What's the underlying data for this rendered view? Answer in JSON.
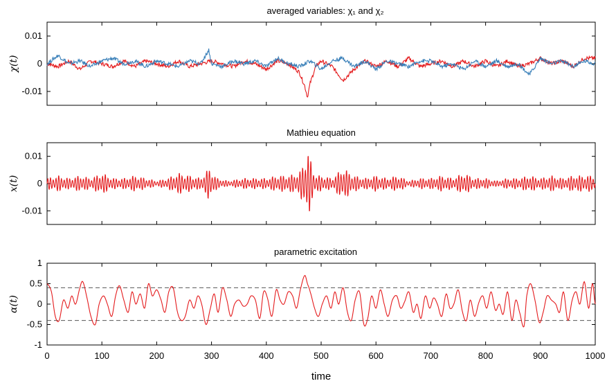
{
  "colors": {
    "red": "#e41a1c",
    "blue": "#377eb8",
    "dashed": "#555555"
  },
  "chart_data": [
    {
      "type": "line",
      "title": "averaged variables: χ₁ and χ₂",
      "ylabel": "χ(t)",
      "xlim": [
        0,
        1000
      ],
      "ylim": [
        -0.015,
        0.015
      ],
      "yticks": [
        -0.01,
        0,
        0.01
      ],
      "yticklabels": [
        "-0.01",
        "0",
        "0.01"
      ],
      "series": [
        {
          "name": "χ₁",
          "color": "#e41a1c",
          "x": [
            0,
            20,
            40,
            60,
            80,
            100,
            120,
            140,
            160,
            180,
            200,
            220,
            240,
            260,
            280,
            300,
            320,
            340,
            360,
            380,
            400,
            420,
            440,
            460,
            470,
            475,
            480,
            490,
            500,
            520,
            540,
            560,
            580,
            600,
            620,
            640,
            660,
            680,
            700,
            720,
            740,
            760,
            780,
            800,
            820,
            840,
            860,
            880,
            900,
            920,
            940,
            960,
            980,
            1000
          ],
          "y": [
            0,
            -0.001,
            0.001,
            -0.002,
            0.001,
            0,
            -0.001,
            0.001,
            -0.001,
            0.001,
            0,
            -0.001,
            0.001,
            -0.001,
            0,
            0.001,
            0,
            -0.001,
            0.001,
            0,
            -0.002,
            0.001,
            0,
            -0.003,
            -0.008,
            -0.012,
            -0.007,
            -0.001,
            0.001,
            -0.001,
            -0.006,
            -0.002,
            0.001,
            -0.001,
            0.001,
            -0.001,
            0.002,
            -0.001,
            0,
            0.001,
            -0.001,
            0.001,
            -0.001,
            0.001,
            -0.001,
            0.001,
            -0.001,
            0,
            0.002,
            0,
            0.001,
            -0.001,
            0.002,
            0.002
          ]
        },
        {
          "name": "χ₂",
          "color": "#377eb8",
          "x": [
            0,
            20,
            40,
            60,
            80,
            100,
            120,
            140,
            160,
            180,
            200,
            220,
            240,
            260,
            280,
            295,
            300,
            320,
            340,
            360,
            380,
            400,
            420,
            440,
            460,
            480,
            500,
            520,
            540,
            560,
            580,
            600,
            620,
            640,
            660,
            680,
            700,
            720,
            740,
            760,
            780,
            800,
            820,
            840,
            860,
            880,
            900,
            920,
            940,
            960,
            980,
            1000
          ],
          "y": [
            0,
            0.003,
            0,
            0.001,
            -0.001,
            0.001,
            0.002,
            0,
            0.001,
            -0.001,
            0.001,
            0,
            -0.001,
            0.001,
            0,
            0.005,
            0,
            -0.001,
            0.001,
            0,
            0.001,
            -0.001,
            0.002,
            0,
            -0.001,
            0.001,
            -0.002,
            0.001,
            0.002,
            -0.001,
            0.001,
            -0.002,
            0.001,
            0,
            -0.001,
            0.001,
            0.001,
            -0.001,
            0,
            -0.002,
            0.001,
            -0.001,
            0.001,
            -0.001,
            0,
            -0.004,
            0.002,
            0,
            0.001,
            -0.001,
            0.001,
            0
          ]
        }
      ]
    },
    {
      "type": "line",
      "title": "Mathieu equation",
      "ylabel": "x(t)",
      "xlim": [
        0,
        1000
      ],
      "ylim": [
        -0.015,
        0.015
      ],
      "yticks": [
        -0.01,
        0,
        0.01
      ],
      "yticklabels": [
        "-0.01",
        "0",
        "0.01"
      ],
      "series": [
        {
          "color": "#e41a1c",
          "envelope_t": [
            0,
            20,
            40,
            60,
            80,
            100,
            120,
            140,
            160,
            180,
            200,
            220,
            240,
            260,
            280,
            295,
            310,
            330,
            360,
            400,
            420,
            440,
            460,
            470,
            476,
            482,
            490,
            500,
            520,
            540,
            560,
            580,
            600,
            620,
            640,
            660,
            680,
            700,
            720,
            740,
            760,
            780,
            800,
            820,
            840,
            860,
            880,
            900,
            920,
            940,
            960,
            980,
            1000
          ],
          "envelope": [
            0.002,
            0.003,
            0.002,
            0.003,
            0.002,
            0.004,
            0.002,
            0.002,
            0.003,
            0.002,
            0.001,
            0.002,
            0.004,
            0.003,
            0.002,
            0.006,
            0.002,
            0.001,
            0.002,
            0.002,
            0.003,
            0.003,
            0.004,
            0.009,
            0.013,
            0.008,
            0.003,
            0.003,
            0.002,
            0.006,
            0.003,
            0.002,
            0.003,
            0.002,
            0.003,
            0.001,
            0.002,
            0.002,
            0.003,
            0.002,
            0.004,
            0.002,
            0.002,
            0.001,
            0.002,
            0.002,
            0.003,
            0.002,
            0.003,
            0.002,
            0.003,
            0.003,
            0.003
          ],
          "period": 5
        }
      ]
    },
    {
      "type": "line",
      "title": "parametric excitation",
      "ylabel": "α(t)",
      "xlabel": "time",
      "xlim": [
        0,
        1000
      ],
      "ylim": [
        -1,
        1
      ],
      "yticks": [
        -1,
        -0.5,
        0,
        0.5,
        1
      ],
      "yticklabels": [
        "-1",
        "-0.5",
        "0",
        "0.5",
        "1"
      ],
      "xticks": [
        0,
        100,
        200,
        300,
        400,
        500,
        600,
        700,
        800,
        900,
        1000
      ],
      "xticklabels": [
        "0",
        "100",
        "200",
        "300",
        "400",
        "500",
        "600",
        "700",
        "800",
        "900",
        "1000"
      ],
      "reference_lines": [
        0.4,
        -0.4
      ],
      "series": [
        {
          "color": "#e41a1c",
          "x": [
            0,
            8,
            15,
            22,
            30,
            38,
            45,
            52,
            60,
            65,
            72,
            80,
            88,
            95,
            103,
            110,
            118,
            125,
            132,
            140,
            148,
            155,
            162,
            170,
            178,
            185,
            192,
            200,
            208,
            215,
            222,
            230,
            238,
            245,
            252,
            260,
            268,
            275,
            282,
            290,
            298,
            305,
            312,
            320,
            328,
            335,
            342,
            350,
            358,
            365,
            372,
            380,
            388,
            395,
            402,
            410,
            418,
            425,
            432,
            440,
            448,
            455,
            462,
            470,
            475,
            480,
            488,
            495,
            502,
            510,
            518,
            525,
            532,
            540,
            548,
            555,
            562,
            570,
            578,
            585,
            592,
            600,
            608,
            615,
            622,
            630,
            638,
            645,
            652,
            660,
            668,
            675,
            682,
            690,
            698,
            705,
            712,
            720,
            728,
            735,
            742,
            750,
            758,
            765,
            772,
            780,
            788,
            795,
            802,
            810,
            818,
            825,
            832,
            840,
            848,
            855,
            862,
            870,
            875,
            882,
            890,
            898,
            905,
            912,
            920,
            928,
            935,
            942,
            950,
            958,
            965,
            972,
            980,
            988,
            995,
            1000
          ],
          "y": [
            0.5,
            0.3,
            -0.3,
            -0.4,
            0.1,
            -0.1,
            0.2,
            0.0,
            0.4,
            0.55,
            0.2,
            -0.3,
            -0.5,
            0.0,
            0.2,
            0.0,
            -0.3,
            0.2,
            0.45,
            0.1,
            -0.2,
            0.3,
            0.0,
            0.25,
            -0.1,
            0.5,
            0.2,
            0.35,
            0.1,
            -0.2,
            0.3,
            0.4,
            -0.2,
            -0.4,
            -0.3,
            0.1,
            -0.1,
            0.2,
            0.0,
            -0.5,
            -0.1,
            0.25,
            -0.2,
            0.4,
            0.1,
            -0.3,
            0.0,
            0.1,
            -0.05,
            0.0,
            0.2,
            0.1,
            -0.35,
            0.3,
            0.15,
            -0.3,
            0.35,
            0.1,
            0.0,
            0.3,
            0.2,
            -0.1,
            0.35,
            0.7,
            0.5,
            0.3,
            -0.1,
            -0.3,
            0.0,
            0.2,
            -0.1,
            0.3,
            0.0,
            0.4,
            -0.2,
            -0.4,
            0.1,
            0.3,
            -0.5,
            -0.35,
            0.2,
            -0.1,
            0.35,
            0.0,
            -0.3,
            0.1,
            0.2,
            -0.1,
            0.05,
            0.3,
            -0.2,
            0.0,
            -0.35,
            0.2,
            -0.1,
            0.15,
            0.0,
            -0.3,
            0.25,
            -0.1,
            0.0,
            0.35,
            -0.2,
            -0.4,
            0.1,
            -0.3,
            0.05,
            0.2,
            -0.1,
            0.3,
            -0.15,
            0.0,
            -0.25,
            0.3,
            -0.4,
            0.1,
            -0.2,
            -0.55,
            0.2,
            0.5,
            0.1,
            -0.45,
            -0.2,
            0.2,
            0.1,
            0.0,
            -0.2,
            0.3,
            -0.4,
            0.1,
            0.3,
            0.0,
            0.55,
            -0.1,
            0.5,
            0.0
          ]
        }
      ]
    }
  ]
}
